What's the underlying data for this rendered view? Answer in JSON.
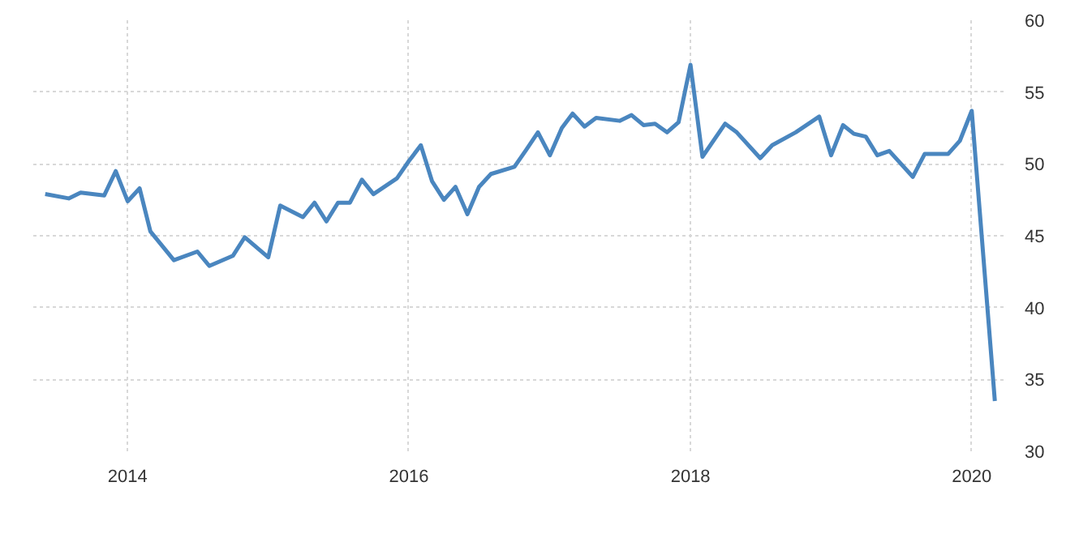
{
  "chart_data": {
    "type": "line",
    "x": [
      "2013-06",
      "2013-08",
      "2013-09",
      "2013-11",
      "2013-12",
      "2014-01",
      "2014-02",
      "2014-03",
      "2014-05",
      "2014-07",
      "2014-08",
      "2014-10",
      "2014-11",
      "2015-01",
      "2015-02",
      "2015-04",
      "2015-05",
      "2015-06",
      "2015-07",
      "2015-08",
      "2015-09",
      "2015-10",
      "2015-12",
      "2016-01",
      "2016-02",
      "2016-03",
      "2016-04",
      "2016-05",
      "2016-06",
      "2016-07",
      "2016-08",
      "2016-10",
      "2016-11",
      "2016-12",
      "2017-01",
      "2017-02",
      "2017-03",
      "2017-04",
      "2017-05",
      "2017-07",
      "2017-08",
      "2017-09",
      "2017-10",
      "2017-11",
      "2017-12",
      "2018-01",
      "2018-02",
      "2018-04",
      "2018-05",
      "2018-07",
      "2018-08",
      "2018-10",
      "2018-12",
      "2019-01",
      "2019-02",
      "2019-03",
      "2019-04",
      "2019-05",
      "2019-06",
      "2019-08",
      "2019-09",
      "2019-11",
      "2019-12",
      "2020-01",
      "2020-03"
    ],
    "series": [
      {
        "color": "#4a86bf",
        "values": [
          47.9,
          47.6,
          48.0,
          47.8,
          49.5,
          47.4,
          48.3,
          45.3,
          43.3,
          43.9,
          42.9,
          43.6,
          44.9,
          43.5,
          47.1,
          46.3,
          47.3,
          46.0,
          47.3,
          47.3,
          48.9,
          47.9,
          49.0,
          50.2,
          51.3,
          48.8,
          47.5,
          48.4,
          46.5,
          48.4,
          49.3,
          49.8,
          51.0,
          52.2,
          50.6,
          52.5,
          53.5,
          52.6,
          53.2,
          53.0,
          53.4,
          52.7,
          52.8,
          52.2,
          52.9,
          56.9,
          50.5,
          52.8,
          52.2,
          50.4,
          51.3,
          52.2,
          53.3,
          50.6,
          52.7,
          52.1,
          51.9,
          50.6,
          50.9,
          49.1,
          50.7,
          50.7,
          51.6,
          53.7,
          33.5
        ]
      }
    ],
    "xlim": [
      "2013-05",
      "2020-04"
    ],
    "xticks": [
      "2014",
      "2016",
      "2018",
      "2020"
    ],
    "ylim": [
      30,
      60
    ],
    "yticks": [
      30,
      35,
      40,
      45,
      50,
      55,
      60
    ],
    "grid": true,
    "line_style": "solid",
    "marker": "none"
  }
}
